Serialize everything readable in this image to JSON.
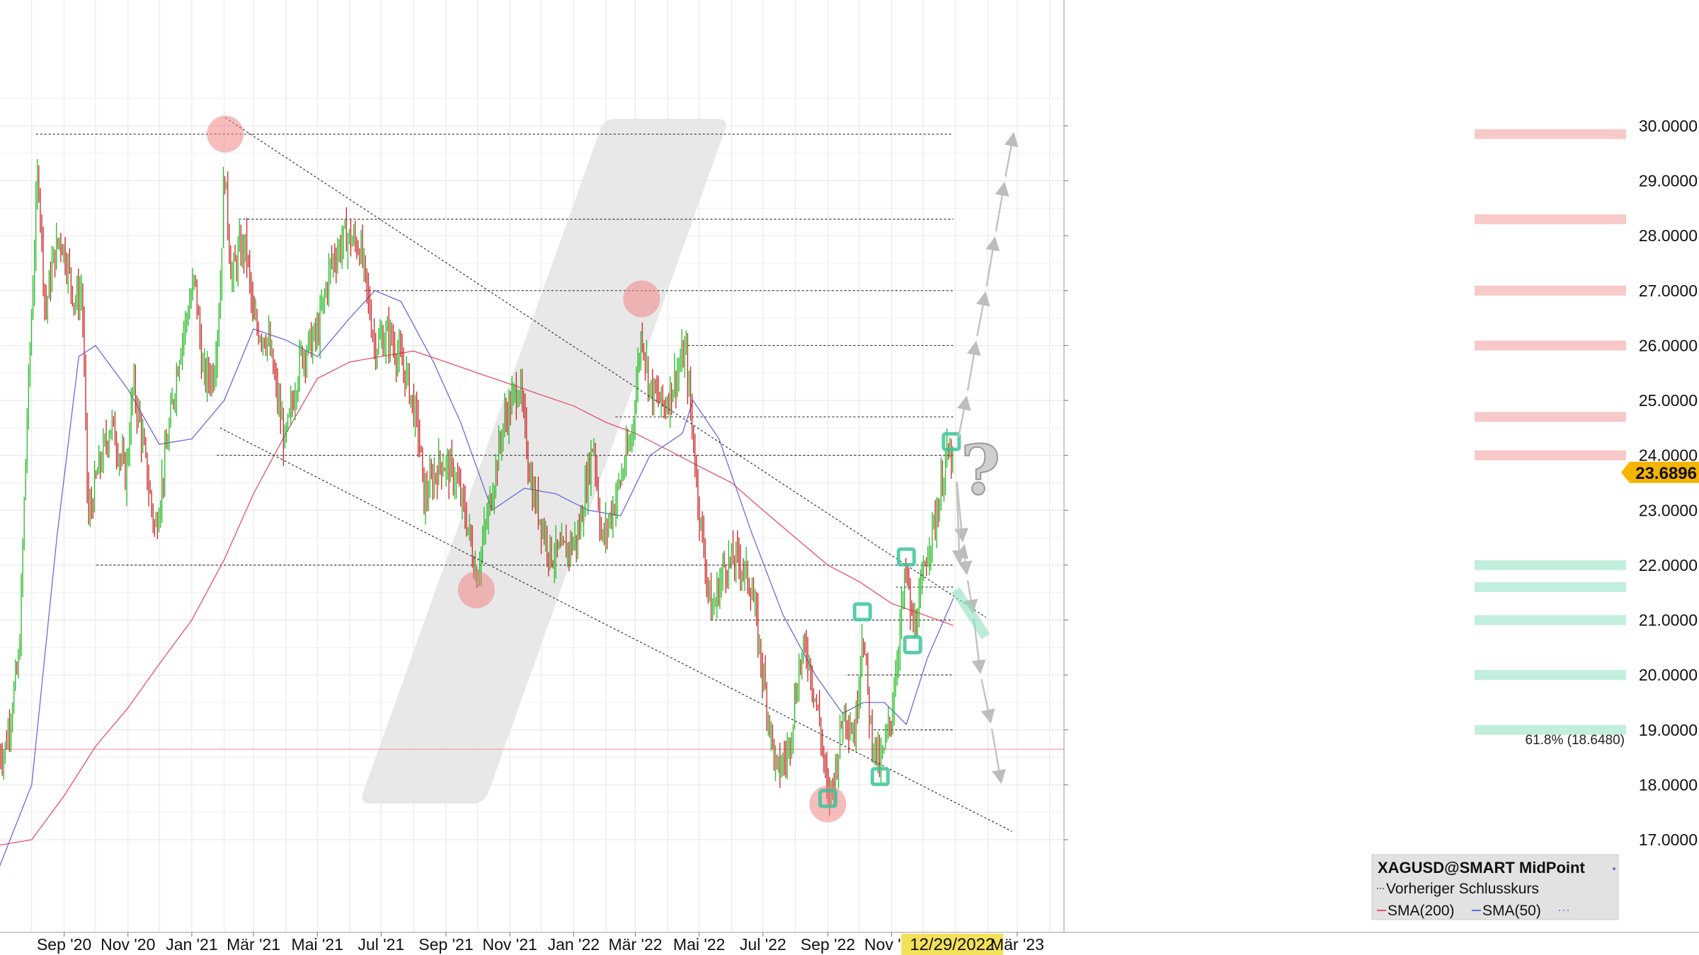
{
  "chart_data": {
    "type": "candlestick",
    "symbol_title": "XAGUSD@SMART MidPoint",
    "legend": {
      "title": "XAGUSD@SMART MidPoint",
      "items": [
        {
          "label": "Vorheriger Schlusskurs",
          "color": "#555555",
          "style": "dashed"
        },
        {
          "label": "SMA(200)",
          "color": "#e8506a",
          "style": "solid"
        },
        {
          "label": "SMA(50)",
          "color": "#6a6ae0",
          "style": "solid"
        }
      ],
      "placement": "bottom-right"
    },
    "x_tick_labels": [
      "Sep '20",
      "Nov '20",
      "Jan '21",
      "Mär '21",
      "Mai '21",
      "Jul '21",
      "Sep '21",
      "Nov '21",
      "Jan '22",
      "Mär '22",
      "Mai '22",
      "Jul '22",
      "Sep '22",
      "Nov '22",
      "12/29/2022",
      "Mär '23"
    ],
    "highlighted_date": "12/29/2022",
    "y_tick_labels": [
      "30.0000",
      "29.0000",
      "28.0000",
      "27.0000",
      "26.0000",
      "25.0000",
      "24.0000",
      "23.0000",
      "22.0000",
      "21.0000",
      "20.0000",
      "19.0000",
      "18.0000",
      "17.0000"
    ],
    "ylim": [
      16.2,
      30.3
    ],
    "grid": true,
    "last_price": "23.6896",
    "fib_label": "61.8% (18.6480)",
    "fib_level": 18.648,
    "price_path": [
      [
        "2020-07-06",
        18.6
      ],
      [
        "2020-07-20",
        20.3
      ],
      [
        "2020-07-27",
        24.4
      ],
      [
        "2020-08-07",
        29.3
      ],
      [
        "2020-08-14",
        26.6
      ],
      [
        "2020-08-21",
        27.5
      ],
      [
        "2020-08-28",
        28.0
      ],
      [
        "2020-09-04",
        27.5
      ],
      [
        "2020-09-11",
        26.8
      ],
      [
        "2020-09-18",
        27.0
      ],
      [
        "2020-09-24",
        22.8
      ],
      [
        "2020-10-02",
        23.6
      ],
      [
        "2020-10-16",
        24.6
      ],
      [
        "2020-10-30",
        23.6
      ],
      [
        "2020-11-06",
        25.3
      ],
      [
        "2020-11-13",
        24.5
      ],
      [
        "2020-11-27",
        22.6
      ],
      [
        "2020-12-07",
        24.0
      ],
      [
        "2020-12-21",
        26.0
      ],
      [
        "2021-01-04",
        27.2
      ],
      [
        "2021-01-12",
        25.4
      ],
      [
        "2021-01-22",
        25.5
      ],
      [
        "2021-01-28",
        26.9
      ],
      [
        "2021-02-01",
        29.3
      ],
      [
        "2021-02-08",
        27.2
      ],
      [
        "2021-02-15",
        27.7
      ],
      [
        "2021-02-22",
        27.8
      ],
      [
        "2021-03-01",
        26.4
      ],
      [
        "2021-03-15",
        26.1
      ],
      [
        "2021-03-31",
        24.2
      ],
      [
        "2021-04-15",
        25.8
      ],
      [
        "2021-05-01",
        26.2
      ],
      [
        "2021-05-14",
        27.5
      ],
      [
        "2021-05-28",
        28.0
      ],
      [
        "2021-06-11",
        27.8
      ],
      [
        "2021-06-25",
        26.0
      ],
      [
        "2021-07-09",
        26.2
      ],
      [
        "2021-07-26",
        25.4
      ],
      [
        "2021-08-06",
        24.4
      ],
      [
        "2021-08-11",
        23.2
      ],
      [
        "2021-08-27",
        23.9
      ],
      [
        "2021-09-10",
        23.6
      ],
      [
        "2021-09-22",
        22.7
      ],
      [
        "2021-09-30",
        21.8
      ],
      [
        "2021-10-11",
        22.9
      ],
      [
        "2021-10-26",
        24.6
      ],
      [
        "2021-11-10",
        25.3
      ],
      [
        "2021-11-22",
        23.4
      ],
      [
        "2021-12-10",
        22.2
      ],
      [
        "2021-12-20",
        22.2
      ],
      [
        "2022-01-05",
        22.5
      ],
      [
        "2022-01-20",
        24.3
      ],
      [
        "2022-01-28",
        22.4
      ],
      [
        "2022-02-10",
        23.2
      ],
      [
        "2022-02-25",
        24.3
      ],
      [
        "2022-03-07",
        26.3
      ],
      [
        "2022-03-15",
        25.2
      ],
      [
        "2022-03-29",
        24.9
      ],
      [
        "2022-04-18",
        25.9
      ],
      [
        "2022-05-02",
        22.8
      ],
      [
        "2022-05-13",
        21.1
      ],
      [
        "2022-05-25",
        22.0
      ],
      [
        "2022-06-08",
        22.1
      ],
      [
        "2022-06-20",
        21.6
      ],
      [
        "2022-07-01",
        20.0
      ],
      [
        "2022-07-14",
        18.2
      ],
      [
        "2022-07-25",
        18.6
      ],
      [
        "2022-08-05",
        20.2
      ],
      [
        "2022-08-12",
        20.5
      ],
      [
        "2022-08-25",
        19.0
      ],
      [
        "2022-09-01",
        17.7
      ],
      [
        "2022-09-08",
        18.2
      ],
      [
        "2022-09-16",
        19.4
      ],
      [
        "2022-09-27",
        18.9
      ],
      [
        "2022-10-04",
        20.9
      ],
      [
        "2022-10-12",
        19.0
      ],
      [
        "2022-10-21",
        18.3
      ],
      [
        "2022-11-01",
        19.3
      ],
      [
        "2022-11-10",
        21.1
      ],
      [
        "2022-11-15",
        21.9
      ],
      [
        "2022-11-21",
        20.8
      ],
      [
        "2022-11-28",
        21.3
      ],
      [
        "2022-12-05",
        22.3
      ],
      [
        "2022-12-15",
        23.0
      ],
      [
        "2022-12-22",
        23.9
      ],
      [
        "2022-12-28",
        24.0
      ],
      [
        "2022-12-30",
        23.7
      ]
    ],
    "sma200": [
      [
        "2020-07-01",
        16.9
      ],
      [
        "2020-08-01",
        17.0
      ],
      [
        "2020-09-01",
        17.8
      ],
      [
        "2020-10-01",
        18.7
      ],
      [
        "2020-11-01",
        19.4
      ],
      [
        "2020-12-01",
        20.2
      ],
      [
        "2021-01-01",
        21.0
      ],
      [
        "2021-02-01",
        22.1
      ],
      [
        "2021-03-01",
        23.3
      ],
      [
        "2021-04-01",
        24.4
      ],
      [
        "2021-05-01",
        25.4
      ],
      [
        "2021-06-01",
        25.7
      ],
      [
        "2021-07-01",
        25.8
      ],
      [
        "2021-08-01",
        25.9
      ],
      [
        "2021-09-01",
        25.7
      ],
      [
        "2021-10-01",
        25.5
      ],
      [
        "2021-11-01",
        25.3
      ],
      [
        "2021-12-01",
        25.1
      ],
      [
        "2022-01-01",
        24.9
      ],
      [
        "2022-02-01",
        24.6
      ],
      [
        "2022-03-01",
        24.4
      ],
      [
        "2022-04-01",
        24.1
      ],
      [
        "2022-05-01",
        23.8
      ],
      [
        "2022-06-01",
        23.5
      ],
      [
        "2022-07-01",
        23.0
      ],
      [
        "2022-08-01",
        22.5
      ],
      [
        "2022-09-01",
        22.0
      ],
      [
        "2022-10-01",
        21.7
      ],
      [
        "2022-11-01",
        21.3
      ],
      [
        "2022-12-01",
        21.1
      ],
      [
        "2022-12-30",
        20.9
      ]
    ],
    "sma50": [
      [
        "2020-07-01",
        16.5
      ],
      [
        "2020-08-01",
        18.0
      ],
      [
        "2020-08-25",
        22.5
      ],
      [
        "2020-09-15",
        25.8
      ],
      [
        "2020-10-01",
        26.0
      ],
      [
        "2020-11-01",
        25.2
      ],
      [
        "2020-12-01",
        24.2
      ],
      [
        "2021-01-01",
        24.3
      ],
      [
        "2021-02-01",
        25.0
      ],
      [
        "2021-03-01",
        26.3
      ],
      [
        "2021-04-01",
        26.1
      ],
      [
        "2021-05-01",
        25.8
      ],
      [
        "2021-06-01",
        26.5
      ],
      [
        "2021-06-25",
        27.0
      ],
      [
        "2021-07-20",
        26.8
      ],
      [
        "2021-08-20",
        25.7
      ],
      [
        "2021-09-15",
        24.6
      ],
      [
        "2021-10-15",
        23.0
      ],
      [
        "2021-11-15",
        23.4
      ],
      [
        "2021-12-15",
        23.3
      ],
      [
        "2022-01-15",
        23.0
      ],
      [
        "2022-02-15",
        22.9
      ],
      [
        "2022-03-15",
        24.0
      ],
      [
        "2022-04-15",
        24.4
      ],
      [
        "2022-04-25",
        25.0
      ],
      [
        "2022-05-20",
        24.3
      ],
      [
        "2022-06-20",
        22.6
      ],
      [
        "2022-07-20",
        21.1
      ],
      [
        "2022-08-20",
        20.0
      ],
      [
        "2022-09-15",
        19.3
      ],
      [
        "2022-10-05",
        19.5
      ],
      [
        "2022-10-25",
        19.5
      ],
      [
        "2022-11-15",
        19.1
      ],
      [
        "2022-12-05",
        20.3
      ],
      [
        "2022-12-30",
        21.4
      ]
    ],
    "horizontal_levels_dotted": [
      {
        "value": 29.85,
        "from": "2020-08-05",
        "to": "2022-12-30"
      },
      {
        "value": 28.3,
        "from": "2021-02-15",
        "to": "2022-12-30"
      },
      {
        "value": 27.0,
        "from": "2021-06-15",
        "to": "2022-12-30"
      },
      {
        "value": 26.0,
        "from": "2022-04-20",
        "to": "2022-12-30"
      },
      {
        "value": 24.7,
        "from": "2022-02-10",
        "to": "2022-12-30"
      },
      {
        "value": 24.0,
        "from": "2021-01-25",
        "to": "2022-12-30"
      },
      {
        "value": 22.0,
        "from": "2020-10-02",
        "to": "2022-12-30"
      },
      {
        "value": 21.6,
        "from": "2022-11-05",
        "to": "2022-12-30"
      },
      {
        "value": 21.0,
        "from": "2022-05-12",
        "to": "2022-12-30"
      },
      {
        "value": 20.0,
        "from": "2022-09-20",
        "to": "2022-12-30"
      },
      {
        "value": 19.0,
        "from": "2022-10-15",
        "to": "2022-12-30"
      }
    ],
    "resistance_zones": [
      29.85,
      28.3,
      27.0,
      26.0,
      24.7,
      24.0
    ],
    "support_zones": [
      22.0,
      21.6,
      21.0,
      20.0,
      19.0
    ],
    "trendlines": [
      {
        "from": [
          "2021-02-02",
          30.15
        ],
        "to": [
          "2023-01-30",
          21.05
        ]
      },
      {
        "from": [
          "2021-01-28",
          24.5
        ],
        "to": [
          "2023-02-24",
          17.15
        ]
      }
    ],
    "swing_markers_circle": [
      [
        "2021-02-02",
        29.85
      ],
      [
        "2021-09-30",
        21.55
      ],
      [
        "2022-03-07",
        26.85
      ],
      [
        "2022-09-01",
        17.65
      ]
    ],
    "swing_markers_square": [
      [
        "2022-09-01",
        17.75
      ],
      [
        "2022-10-04",
        21.15
      ],
      [
        "2022-10-21",
        18.15
      ],
      [
        "2022-11-15",
        22.15
      ],
      [
        "2022-11-21",
        20.55
      ],
      [
        "2022-12-28",
        24.25
      ]
    ],
    "projection_up": [
      [
        "2023-01-03",
        24.25
      ],
      [
        "2023-01-12",
        25.1
      ],
      [
        "2023-01-21",
        26.1
      ],
      [
        "2023-01-30",
        27.0
      ],
      [
        "2023-02-08",
        28.0
      ],
      [
        "2023-02-17",
        29.0
      ],
      [
        "2023-02-26",
        29.9
      ]
    ],
    "projection_down": [
      [
        "2023-01-02",
        23.6
      ],
      [
        "2023-01-08",
        22.4
      ],
      [
        "2023-01-12",
        21.8
      ],
      [
        "2023-01-18",
        21.1
      ],
      [
        "2023-01-25",
        20.0
      ],
      [
        "2023-02-04",
        19.1
      ],
      [
        "2023-02-14",
        18.0
      ]
    ],
    "projection_mid": [
      [
        "2023-01-02",
        23.6
      ],
      [
        "2023-01-05",
        22.0
      ],
      [
        "2023-01-10",
        22.4
      ]
    ],
    "channel_projection": [
      [
        "2023-01-01",
        21.55
      ],
      [
        "2023-01-30",
        20.7
      ]
    ],
    "question_mark": {
      "text": "?",
      "date": "2023-01-25",
      "value": 23.3
    }
  }
}
